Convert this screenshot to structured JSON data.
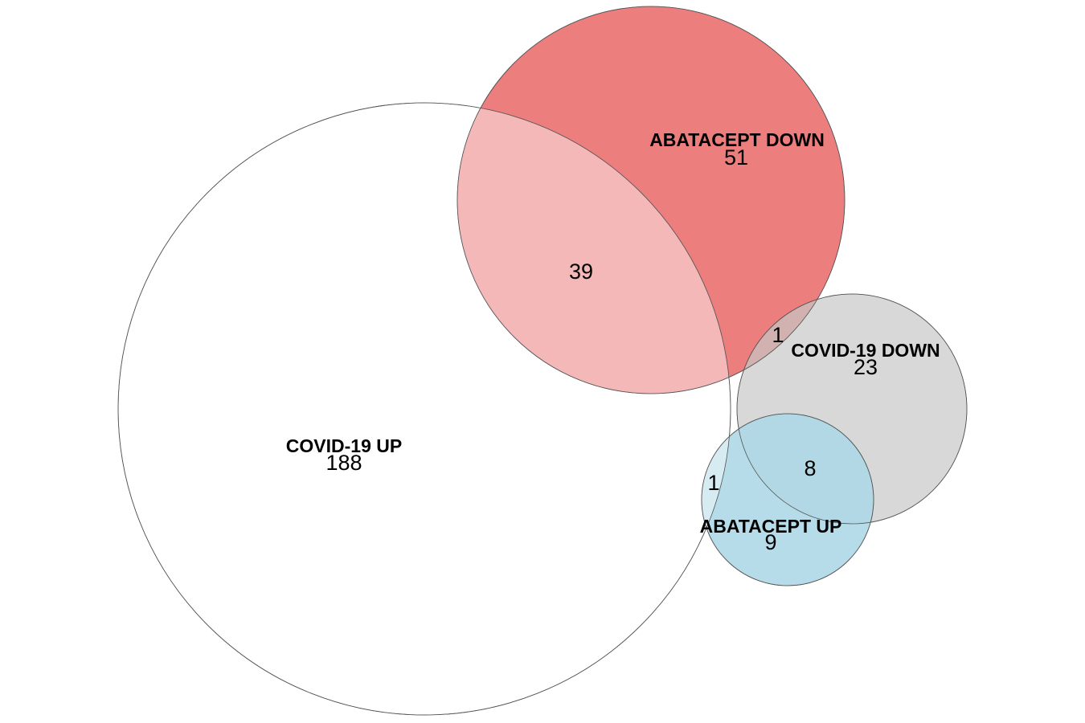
{
  "diagram": {
    "sets": [
      {
        "id": "covid_up",
        "label": "COVID-19 UP",
        "count": "188",
        "color": "#ffffff",
        "opacity": 0
      },
      {
        "id": "abatacept_down",
        "label": "ABATACEPT DOWN",
        "count": "51",
        "color": "#e65353",
        "opacity": 0.75
      },
      {
        "id": "covid_down",
        "label": "COVID-19 DOWN",
        "count": "23",
        "color": "#c8c8c8",
        "opacity": 0.7
      },
      {
        "id": "abatacept_up",
        "label": "ABATACEPT UP",
        "count": "9",
        "color": "#add8e6",
        "opacity": 0.9
      }
    ],
    "intersections": [
      {
        "id": "covid_up_and_abatacept_down",
        "sets": [
          "covid_up",
          "abatacept_down"
        ],
        "count": "39"
      },
      {
        "id": "abatacept_down_and_covid_down",
        "sets": [
          "abatacept_down",
          "covid_down"
        ],
        "count": "1"
      },
      {
        "id": "covid_down_and_abatacept_up",
        "sets": [
          "covid_down",
          "abatacept_up"
        ],
        "count": "8"
      },
      {
        "id": "covid_up_and_abatacept_up",
        "sets": [
          "covid_up",
          "abatacept_up"
        ],
        "count": "1"
      }
    ]
  }
}
